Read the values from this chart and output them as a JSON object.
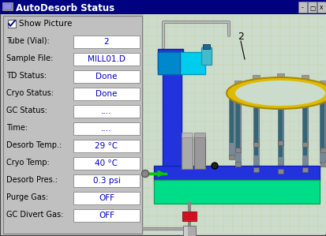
{
  "title": "AutoDesorb Status",
  "title_bar_color": "#000080",
  "title_text_color": "#ffffff",
  "bg_color": "#c0c0c0",
  "right_bg_color": "#c8d8c8",
  "grid_color": "#d8d890",
  "checkbox_label": "Show Picture",
  "rows": [
    {
      "label": "Tube (Vial):",
      "value": "2",
      "value_color": "#0000cc"
    },
    {
      "label": "Sample File:",
      "value": "MILL01.D",
      "value_color": "#0000cc"
    },
    {
      "label": "TD Status:",
      "value": "Done",
      "value_color": "#0000cc"
    },
    {
      "label": "Cryo Status:",
      "value": "Done",
      "value_color": "#0000cc"
    },
    {
      "label": "GC Status:",
      "value": "....",
      "value_color": "#0000cc"
    },
    {
      "label": "Time:",
      "value": "....",
      "value_color": "#0000cc"
    },
    {
      "label": "Desorb Temp.:",
      "value": "29 °C",
      "value_color": "#0000cc"
    },
    {
      "label": "Cryo Temp:",
      "value": "40 °C",
      "value_color": "#0000cc"
    },
    {
      "label": "Desorb Pres.:",
      "value": "0.3 psi",
      "value_color": "#0000cc"
    },
    {
      "label": "Purge Gas:",
      "value": "OFF",
      "value_color": "#0000cc"
    },
    {
      "label": "GC Divert Gas:",
      "value": "OFF",
      "value_color": "#0000cc"
    }
  ],
  "fig_width": 4.13,
  "fig_height": 2.99,
  "dpi": 100
}
